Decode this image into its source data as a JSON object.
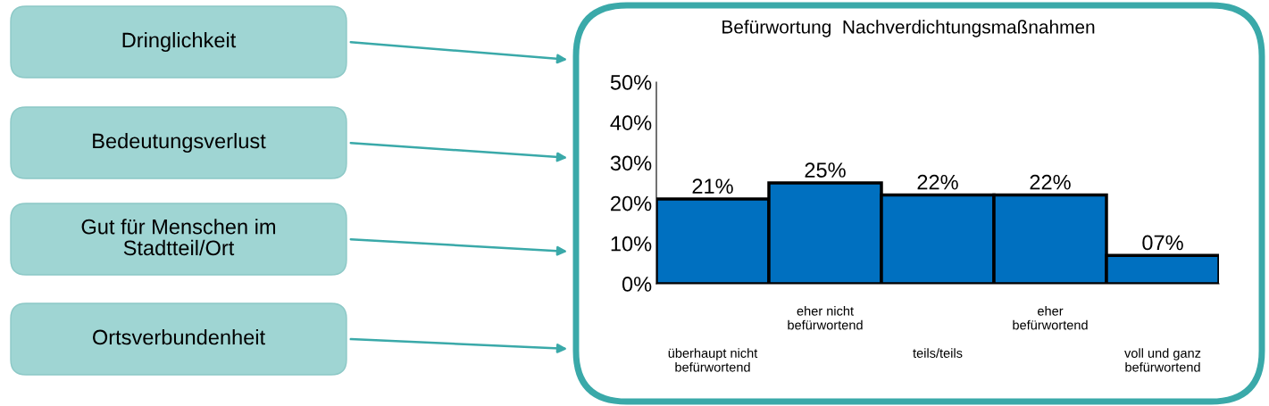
{
  "chart_data": {
    "type": "bar",
    "title": "Befürwortung  Nachverdichtungsmaßnahmen",
    "categories": [
      "überhaupt nicht\nbefürwortend",
      "eher nicht\nbefürwortend",
      "teils/teils",
      "eher\nbefürwortend",
      "voll und ganz\nbefürwortend"
    ],
    "values": [
      21,
      25,
      22,
      22,
      7
    ],
    "value_labels": [
      "21%",
      "25%",
      "22%",
      "22%",
      "07%"
    ],
    "color": "#0070c0",
    "ylim": [
      0,
      50
    ],
    "yticks": [
      {
        "value": 0,
        "label": "0%"
      },
      {
        "value": 10,
        "label": "10%"
      },
      {
        "value": 20,
        "label": "20%"
      },
      {
        "value": 30,
        "label": "30%"
      },
      {
        "value": 40,
        "label": "40%"
      },
      {
        "value": 50,
        "label": "50%"
      }
    ],
    "grid": false,
    "legend": false,
    "annotations": [
      "Dringlichkeit",
      "Bedeutungsverlust",
      "Gut für Menschen im\nStadtteil/Ort",
      "Ortsverbundenheit"
    ]
  }
}
